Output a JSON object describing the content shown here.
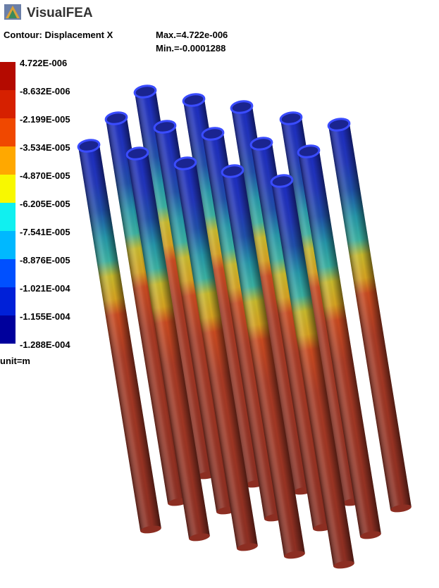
{
  "app": {
    "title": "VisualFEA"
  },
  "contour": {
    "title": "Contour: Displacement X",
    "max": "Max.=4.722e-006",
    "min": "Min.=-0.0001288"
  },
  "legend": {
    "labels": [
      "4.722E-006",
      "-8.632E-006",
      "-2.199E-005",
      "-3.534E-005",
      "-4.870E-005",
      "-6.205E-005",
      "-7.541E-005",
      "-8.876E-005",
      "-1.021E-004",
      "-1.155E-004",
      "-1.288E-004"
    ],
    "unit": "unit=m"
  }
}
